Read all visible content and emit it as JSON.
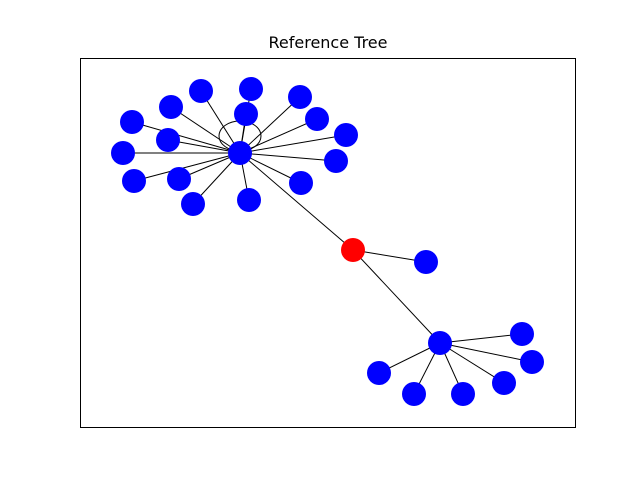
{
  "figure": {
    "title": "Reference Tree"
  },
  "colors": {
    "root": "#ff0000",
    "node": "#0000ff",
    "edge": "#000000",
    "frame": "#000000",
    "background": "#ffffff"
  },
  "graph": {
    "nodes": [
      {
        "id": "r",
        "role": "root"
      },
      {
        "id": "h1",
        "role": "hub"
      },
      {
        "id": "h2",
        "role": "hub"
      },
      {
        "id": "leaf-r1",
        "role": "leaf"
      },
      {
        "id": "a1",
        "role": "leaf"
      },
      {
        "id": "a2",
        "role": "leaf"
      },
      {
        "id": "a3",
        "role": "leaf"
      },
      {
        "id": "a4",
        "role": "leaf"
      },
      {
        "id": "a5",
        "role": "leaf"
      },
      {
        "id": "a6",
        "role": "leaf"
      },
      {
        "id": "a7",
        "role": "leaf"
      },
      {
        "id": "a8",
        "role": "leaf"
      },
      {
        "id": "a9",
        "role": "leaf"
      },
      {
        "id": "a10",
        "role": "leaf"
      },
      {
        "id": "a11",
        "role": "leaf"
      },
      {
        "id": "a12",
        "role": "leaf"
      },
      {
        "id": "a13",
        "role": "leaf"
      },
      {
        "id": "a14",
        "role": "leaf"
      },
      {
        "id": "a15",
        "role": "leaf"
      },
      {
        "id": "a16",
        "role": "leaf"
      },
      {
        "id": "b1",
        "role": "leaf"
      },
      {
        "id": "b2",
        "role": "leaf"
      },
      {
        "id": "b3",
        "role": "leaf"
      },
      {
        "id": "b4",
        "role": "leaf"
      },
      {
        "id": "b5",
        "role": "leaf"
      },
      {
        "id": "b6",
        "role": "leaf"
      }
    ],
    "edges": [
      [
        "r",
        "h1"
      ],
      [
        "r",
        "leaf-r1"
      ],
      [
        "r",
        "h2"
      ],
      [
        "h1",
        "h1"
      ],
      [
        "h1",
        "a1"
      ],
      [
        "h1",
        "a2"
      ],
      [
        "h1",
        "a3"
      ],
      [
        "h1",
        "a4"
      ],
      [
        "h1",
        "a5"
      ],
      [
        "h1",
        "a6"
      ],
      [
        "h1",
        "a7"
      ],
      [
        "h1",
        "a8"
      ],
      [
        "h1",
        "a9"
      ],
      [
        "h1",
        "a10"
      ],
      [
        "h1",
        "a11"
      ],
      [
        "h1",
        "a12"
      ],
      [
        "h1",
        "a13"
      ],
      [
        "h1",
        "a14"
      ],
      [
        "h1",
        "a15"
      ],
      [
        "h1",
        "a16"
      ],
      [
        "h2",
        "b1"
      ],
      [
        "h2",
        "b2"
      ],
      [
        "h2",
        "b3"
      ],
      [
        "h2",
        "b4"
      ],
      [
        "h2",
        "b5"
      ],
      [
        "h2",
        "b6"
      ]
    ]
  }
}
